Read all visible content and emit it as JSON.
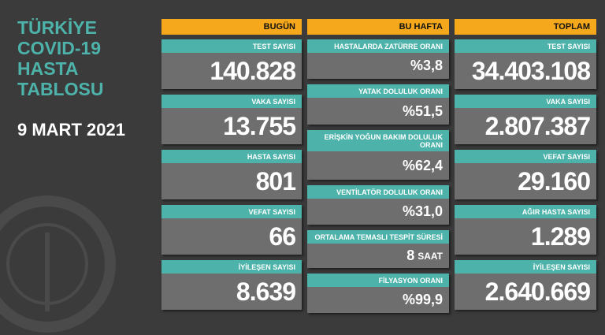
{
  "title_lines": [
    "TÜRKİYE",
    "COVID-19",
    "HASTA",
    "TABLOSU"
  ],
  "date": "9 MART 2021",
  "columns": [
    {
      "header": "BUGÜN",
      "cards": [
        {
          "label": "TEST SAYISI",
          "value": "140.828"
        },
        {
          "label": "VAKA SAYISI",
          "value": "13.755"
        },
        {
          "label": "HASTA SAYISI",
          "value": "801"
        },
        {
          "label": "VEFAT SAYISI",
          "value": "66"
        },
        {
          "label": "İYİLEŞEN SAYISI",
          "value": "8.639"
        }
      ]
    },
    {
      "header": "BU HAFTA",
      "cards": [
        {
          "label": "HASTALARDA ZATÜRRE ORANI",
          "value": "%3,8"
        },
        {
          "label": "YATAK DOLULUK ORANI",
          "value": "%51,5"
        },
        {
          "label": "ERİŞKİN YOĞUN BAKIM DOLULUK ORANI",
          "value": "%62,4"
        },
        {
          "label": "VENTİLATÖR DOLULUK ORANI",
          "value": "%31,0"
        },
        {
          "label": "ORTALAMA TEMASLI TESPİT SÜRESİ",
          "value": "8",
          "unit": "SAAT"
        },
        {
          "label": "FİLYASYON ORANI",
          "value": "%99,9"
        }
      ]
    },
    {
      "header": "TOPLAM",
      "cards": [
        {
          "label": "TEST SAYISI",
          "value": "34.403.108"
        },
        {
          "label": "VAKA SAYISI",
          "value": "2.807.387"
        },
        {
          "label": "VEFAT SAYISI",
          "value": "29.160"
        },
        {
          "label": "AĞIR HASTA SAYISI",
          "value": "1.289"
        },
        {
          "label": "İYİLEŞEN SAYISI",
          "value": "2.640.669"
        }
      ]
    }
  ]
}
